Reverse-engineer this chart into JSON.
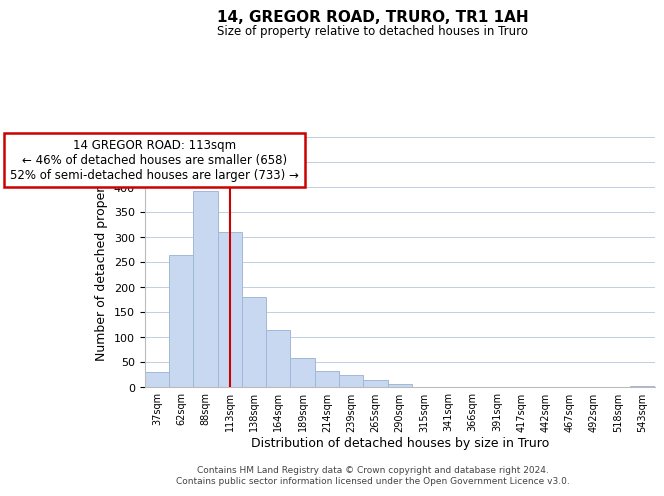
{
  "title": "14, GREGOR ROAD, TRURO, TR1 1AH",
  "subtitle": "Size of property relative to detached houses in Truro",
  "xlabel": "Distribution of detached houses by size in Truro",
  "ylabel": "Number of detached properties",
  "bar_color": "#c8d8f0",
  "bar_edgecolor": "#a0b8d8",
  "vline_color": "#cc0000",
  "vline_idx": 3,
  "annotation_title": "14 GREGOR ROAD: 113sqm",
  "annotation_line1": "← 46% of detached houses are smaller (658)",
  "annotation_line2": "52% of semi-detached houses are larger (733) →",
  "annotation_box_edgecolor": "#cc0000",
  "categories": [
    "37sqm",
    "62sqm",
    "88sqm",
    "113sqm",
    "138sqm",
    "164sqm",
    "189sqm",
    "214sqm",
    "239sqm",
    "265sqm",
    "290sqm",
    "315sqm",
    "341sqm",
    "366sqm",
    "391sqm",
    "417sqm",
    "442sqm",
    "467sqm",
    "492sqm",
    "518sqm",
    "543sqm"
  ],
  "values": [
    30,
    265,
    393,
    310,
    180,
    115,
    58,
    32,
    25,
    15,
    7,
    0,
    0,
    0,
    0,
    0,
    0,
    0,
    0,
    0,
    2
  ],
  "ylim": [
    0,
    500
  ],
  "yticks": [
    0,
    50,
    100,
    150,
    200,
    250,
    300,
    350,
    400,
    450,
    500
  ],
  "footer1": "Contains HM Land Registry data © Crown copyright and database right 2024.",
  "footer2": "Contains public sector information licensed under the Open Government Licence v3.0."
}
